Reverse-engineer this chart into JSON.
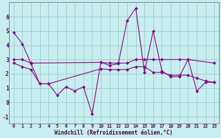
{
  "xlabel": "Windchill (Refroidissement éolien,°C)",
  "bg_color": "#c8eef0",
  "grid_color": "#a0d0cc",
  "line_color": "#880088",
  "x_all": [
    0,
    1,
    2,
    3,
    4,
    5,
    6,
    7,
    8,
    9,
    10,
    11,
    12,
    13,
    14,
    15,
    16,
    17,
    18,
    19,
    20,
    21,
    22,
    23
  ],
  "line_zigzag": [
    4.9,
    4.1,
    2.7,
    1.3,
    1.3,
    0.5,
    1.1,
    0.8,
    1.1,
    -0.8,
    2.8,
    2.6,
    2.7,
    5.7,
    6.6,
    2.1,
    5.0,
    2.2,
    1.8,
    1.8,
    3.0,
    0.8,
    1.4,
    1.4
  ],
  "line_upper_x": [
    0,
    1,
    2,
    10,
    11,
    12,
    13,
    14,
    15,
    16,
    17,
    19,
    20,
    23
  ],
  "line_upper_y": [
    3.0,
    3.0,
    2.75,
    2.8,
    2.75,
    2.75,
    2.75,
    3.0,
    3.0,
    3.0,
    3.0,
    3.0,
    3.0,
    2.75
  ],
  "line_lower_x": [
    0,
    1,
    2,
    3,
    4,
    10,
    11,
    12,
    13,
    14,
    15,
    16,
    17,
    18,
    19,
    20,
    21,
    22,
    23
  ],
  "line_lower_y": [
    2.75,
    2.5,
    2.3,
    1.3,
    1.3,
    2.35,
    2.3,
    2.3,
    2.3,
    2.5,
    2.5,
    2.1,
    2.1,
    1.9,
    1.9,
    1.9,
    1.7,
    1.5,
    1.4
  ],
  "ylim": [
    -1.5,
    7.0
  ],
  "yticks": [
    -1,
    0,
    1,
    2,
    3,
    4,
    5,
    6
  ],
  "xlim": [
    -0.5,
    23.5
  ]
}
